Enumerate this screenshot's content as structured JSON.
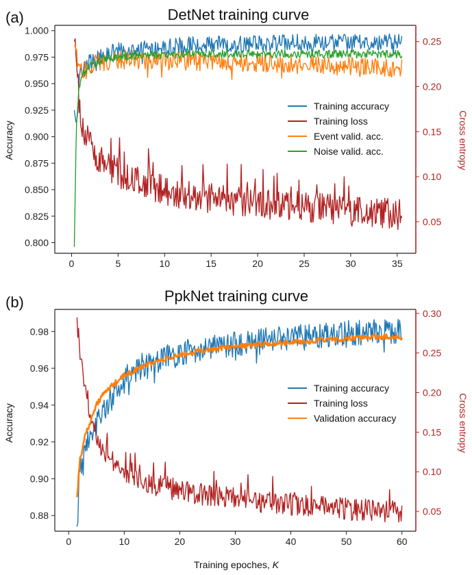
{
  "chart_data": [
    {
      "type": "line",
      "panel_label": "(a)",
      "title": "DetNet training curve",
      "xlabel": "",
      "ylabel": "Accuracy",
      "ylabel_right": "Cross entropy",
      "xlim": [
        -1.8,
        37.0
      ],
      "ylim": [
        0.79,
        1.005
      ],
      "ylim_right": [
        0.015,
        0.268
      ],
      "xticks": [
        "0",
        "5",
        "10",
        "15",
        "20",
        "25",
        "30",
        "35"
      ],
      "yticks": [
        "0.800",
        "0.825",
        "0.850",
        "0.875",
        "0.900",
        "0.925",
        "0.950",
        "0.975",
        "1.000"
      ],
      "yticks_right": [
        "0.05",
        "0.10",
        "0.15",
        "0.20",
        "0.25"
      ],
      "legend_position": "center-right",
      "series": [
        {
          "name": "Training accuracy",
          "axis": "left",
          "color": "#1f77b4",
          "x": [
            0.3,
            0.5,
            0.8,
            1.0,
            1.5,
            2,
            3,
            4,
            5,
            6,
            8,
            10,
            12,
            15,
            18,
            20,
            22,
            25,
            28,
            30,
            32,
            35.5
          ],
          "y": [
            0.925,
            0.905,
            0.955,
            0.962,
            0.968,
            0.972,
            0.976,
            0.978,
            0.981,
            0.982,
            0.984,
            0.985,
            0.986,
            0.987,
            0.987,
            0.988,
            0.988,
            0.989,
            0.989,
            0.989,
            0.989,
            0.989
          ],
          "noise": 0.008
        },
        {
          "name": "Training loss",
          "axis": "right",
          "color": "#b22222",
          "x": [
            0.3,
            0.5,
            0.8,
            1.0,
            1.5,
            2,
            3,
            4,
            5,
            6,
            8,
            10,
            12,
            15,
            18,
            20,
            22,
            25,
            28,
            30,
            32,
            35.5
          ],
          "y": [
            0.25,
            0.245,
            0.185,
            0.165,
            0.145,
            0.135,
            0.12,
            0.11,
            0.105,
            0.1,
            0.09,
            0.085,
            0.08,
            0.076,
            0.073,
            0.071,
            0.069,
            0.066,
            0.064,
            0.062,
            0.06,
            0.058
          ],
          "noise": 0.017
        },
        {
          "name": "Event valid. acc.",
          "axis": "left",
          "color": "#ff7f0e",
          "x": [
            0.3,
            0.5,
            0.8,
            1.0,
            1.5,
            2,
            3,
            4,
            5,
            6,
            8,
            10,
            12,
            15,
            18,
            20,
            22,
            25,
            28,
            30,
            32,
            35.5
          ],
          "y": [
            0.985,
            0.98,
            0.96,
            0.962,
            0.965,
            0.968,
            0.97,
            0.971,
            0.972,
            0.973,
            0.972,
            0.972,
            0.971,
            0.971,
            0.97,
            0.97,
            0.969,
            0.968,
            0.967,
            0.966,
            0.965,
            0.965
          ],
          "noise": 0.009
        },
        {
          "name": "Noise valid. acc.",
          "axis": "left",
          "color": "#2ca02c",
          "x": [
            0.3,
            0.5,
            0.8,
            1.0,
            1.5,
            2,
            3,
            4,
            5,
            6,
            8,
            10,
            12,
            15,
            18,
            20,
            22,
            25,
            28,
            30,
            32,
            35.5
          ],
          "y": [
            0.796,
            0.905,
            0.945,
            0.955,
            0.962,
            0.967,
            0.971,
            0.974,
            0.975,
            0.976,
            0.977,
            0.977,
            0.978,
            0.978,
            0.978,
            0.978,
            0.978,
            0.978,
            0.978,
            0.978,
            0.978,
            0.978
          ],
          "noise": 0.004
        }
      ]
    },
    {
      "type": "line",
      "panel_label": "(b)",
      "title": "PpkNet training curve",
      "xlabel": "Training epoches, K",
      "xlabel_text": "Training epoches, ",
      "xlabel_italic": "K",
      "ylabel": "Accuracy",
      "ylabel_right": "Cross entropy",
      "xlim": [
        -2.5,
        62.5
      ],
      "ylim": [
        0.8715,
        0.992
      ],
      "ylim_right": [
        0.025,
        0.305
      ],
      "xticks": [
        "0",
        "10",
        "20",
        "30",
        "40",
        "50",
        "60"
      ],
      "yticks": [
        "0.88",
        "0.90",
        "0.92",
        "0.94",
        "0.96",
        "0.98"
      ],
      "yticks_right": [
        "0.05",
        "0.10",
        "0.15",
        "0.20",
        "0.25",
        "0.30"
      ],
      "legend_position": "center-right",
      "series": [
        {
          "name": "Training accuracy",
          "axis": "left",
          "color": "#1f77b4",
          "x": [
            1.5,
            2,
            3,
            4,
            5,
            6,
            8,
            10,
            12,
            15,
            20,
            25,
            30,
            35,
            40,
            45,
            50,
            55,
            60
          ],
          "y": [
            0.874,
            0.905,
            0.918,
            0.925,
            0.93,
            0.937,
            0.945,
            0.955,
            0.96,
            0.963,
            0.968,
            0.971,
            0.973,
            0.975,
            0.977,
            0.978,
            0.979,
            0.98,
            0.98
          ],
          "noise": 0.007
        },
        {
          "name": "Training loss",
          "axis": "right",
          "color": "#b22222",
          "x": [
            1.5,
            2,
            3,
            4,
            5,
            6,
            8,
            10,
            12,
            15,
            20,
            25,
            30,
            35,
            40,
            45,
            50,
            55,
            60
          ],
          "y": [
            0.295,
            0.25,
            0.2,
            0.175,
            0.15,
            0.13,
            0.115,
            0.1,
            0.092,
            0.085,
            0.076,
            0.07,
            0.066,
            0.062,
            0.059,
            0.056,
            0.053,
            0.051,
            0.05
          ],
          "noise": 0.014
        },
        {
          "name": "Validation accuracy",
          "axis": "left",
          "color": "#ff7f0e",
          "x": [
            1.5,
            2,
            3,
            4,
            5,
            6,
            8,
            10,
            12,
            15,
            20,
            25,
            30,
            35,
            40,
            45,
            50,
            55,
            60
          ],
          "y": [
            0.89,
            0.91,
            0.924,
            0.932,
            0.94,
            0.945,
            0.951,
            0.956,
            0.959,
            0.963,
            0.967,
            0.97,
            0.972,
            0.973,
            0.974,
            0.975,
            0.976,
            0.977,
            0.977
          ],
          "noise": 0.0015
        }
      ]
    }
  ]
}
